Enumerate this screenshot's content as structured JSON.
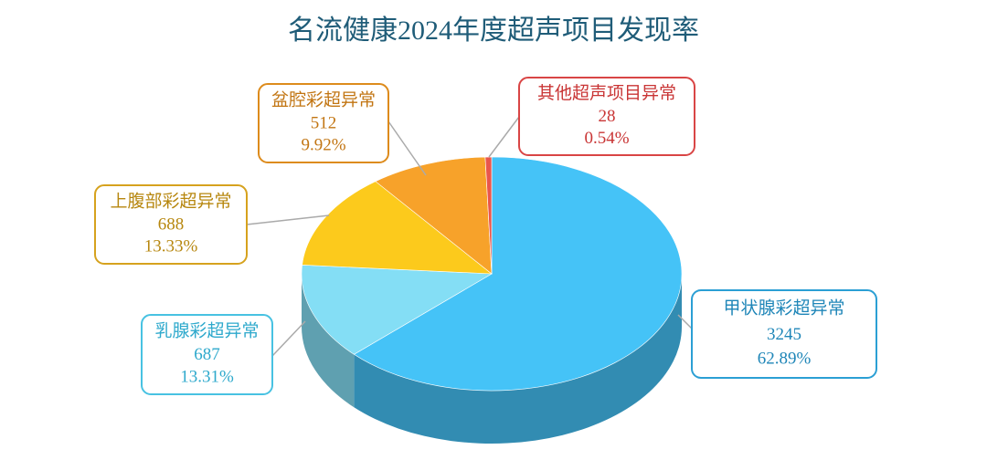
{
  "chart_data": {
    "type": "pie3d",
    "title": "名流健康2024年度超声项目发现率",
    "categories": [
      "甲状腺彩超异常",
      "乳腺彩超异常",
      "上腹部彩超异常",
      "盆腔彩超异常",
      "其他超声项目异常"
    ],
    "values": [
      3245,
      687,
      688,
      512,
      28
    ],
    "percentages": [
      {
        "value": 62.89,
        "label": "62.89%"
      },
      {
        "value": 13.31,
        "label": "13.31%"
      },
      {
        "value": 13.33,
        "label": "13.33%"
      },
      {
        "value": 9.92,
        "label": "9.92%"
      },
      {
        "value": 0.54,
        "label": "0.54%"
      }
    ],
    "colors": [
      "#45c3f7",
      "#84def5",
      "#fcca1c",
      "#f7a22a",
      "#e9564c"
    ]
  }
}
